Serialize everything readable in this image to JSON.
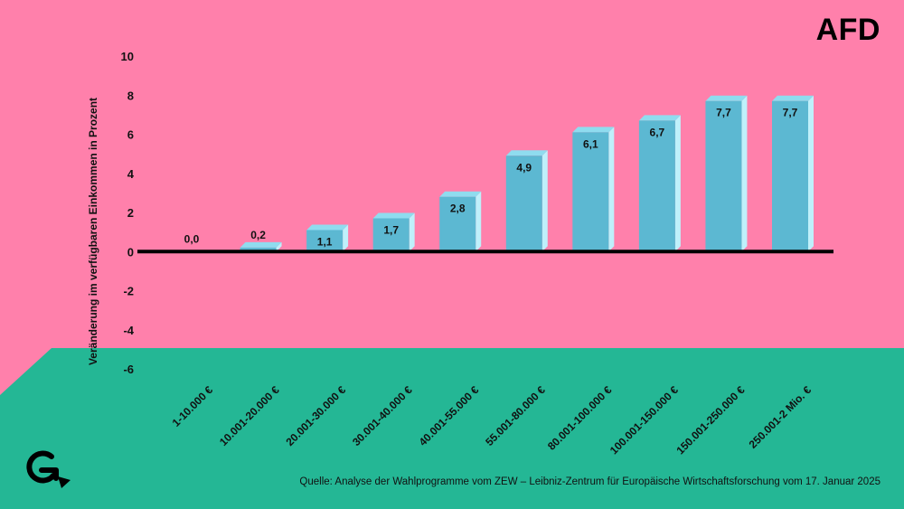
{
  "header": {
    "party": "AFD"
  },
  "footer": {
    "source": "Quelle: Analyse der Wahlprogramme vom ZEW – Leibniz-Zentrum für Europäische Wirtschaftsforschung vom 17. Januar 2025"
  },
  "colors": {
    "background_top": "#ff80ab",
    "background_bottom": "#24b795",
    "bar_front": "#5cb8d2",
    "bar_side": "#bff0fb",
    "bar_top": "#8fdcef",
    "axis": "#000000"
  },
  "chart_data": {
    "type": "bar",
    "title": "",
    "xlabel": "",
    "ylabel": "Veränderung im verfügbaren Einkommen in Prozent",
    "ylim": [
      -6,
      10
    ],
    "yticks": [
      10,
      8,
      6,
      4,
      2,
      0,
      -2,
      -4,
      -6
    ],
    "categories": [
      "1-10.000 €",
      "10.001-20.000 €",
      "20.001-30.000 €",
      "30.001-40.000 €",
      "40.001-55.000 €",
      "55.001-80.000 €",
      "80.001-100.000 €",
      "100.001-150.000 €",
      "150.001-250.000 €",
      "250.001-2 Mio. €"
    ],
    "values": [
      0.0,
      0.2,
      1.1,
      1.7,
      2.8,
      4.9,
      6.1,
      6.7,
      7.7,
      7.7
    ],
    "value_labels": [
      "0,0",
      "0,2",
      "1,1",
      "1,7",
      "2,8",
      "4,9",
      "6,1",
      "6,7",
      "7,7",
      "7,7"
    ],
    "grid": false,
    "legend": "none"
  }
}
